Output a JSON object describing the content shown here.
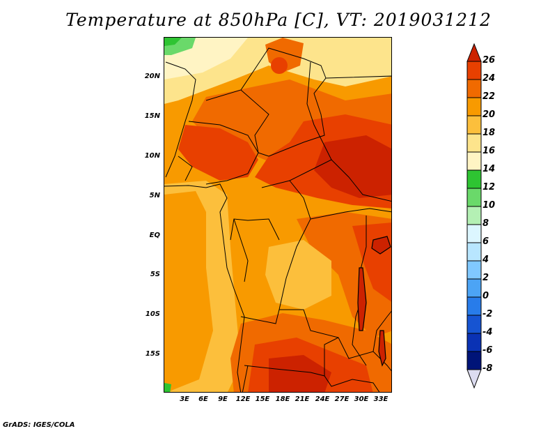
{
  "title": "Temperature at 850hPa [C], VT: 2019031212",
  "credit": "GrADS: IGES/COLA",
  "y_axis_labels": [
    "20N",
    "15N",
    "10N",
    "5N",
    "EQ",
    "5S",
    "10S",
    "15S"
  ],
  "x_axis_labels": [
    "3E",
    "6E",
    "9E",
    "12E",
    "15E",
    "18E",
    "21E",
    "24E",
    "27E",
    "30E",
    "33E"
  ],
  "colorbar": {
    "labels": [
      "26",
      "24",
      "22",
      "20",
      "18",
      "16",
      "14",
      "12",
      "10",
      "8",
      "6",
      "4",
      "2",
      "0",
      "-2",
      "-4",
      "-6",
      "-8"
    ],
    "colors": [
      "#cc2200",
      "#e84000",
      "#f06a00",
      "#f89a00",
      "#fcbf3c",
      "#fde48c",
      "#fff4c4",
      "#2ec432",
      "#6ad96a",
      "#b4f0b4",
      "#dcf6ff",
      "#b8e6ff",
      "#80c8ff",
      "#4ca4f5",
      "#287cea",
      "#1654d2",
      "#0a32b4",
      "#001478",
      "#dcdcf0"
    ]
  }
}
